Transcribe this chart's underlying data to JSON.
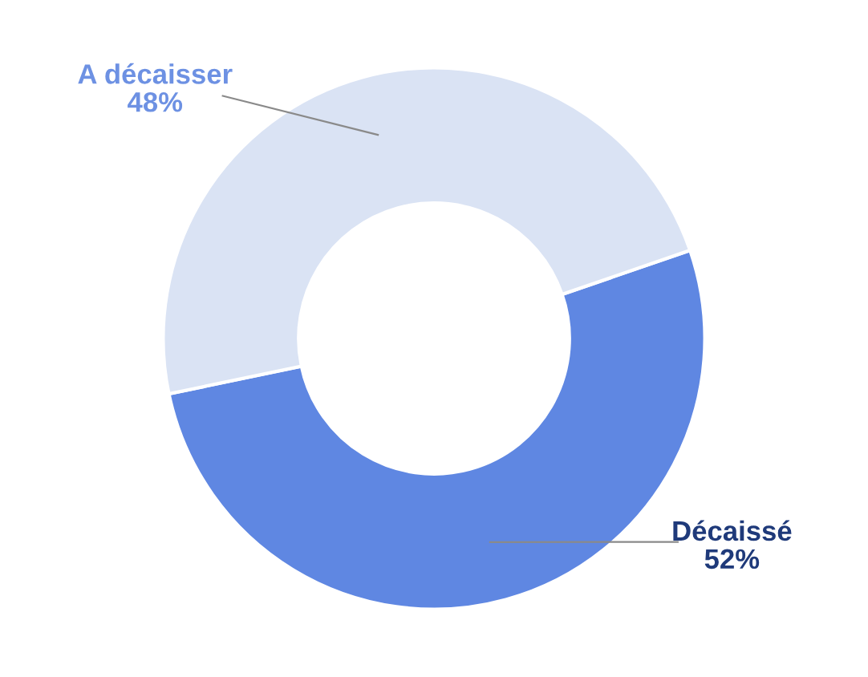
{
  "chart_data": {
    "type": "donut",
    "categories": [
      "Décaissé",
      "A décaisser"
    ],
    "values": [
      52,
      48
    ],
    "colors": [
      "#5f87e2",
      "#dae3f4"
    ],
    "value_labels": [
      "52%",
      "48%"
    ]
  }
}
